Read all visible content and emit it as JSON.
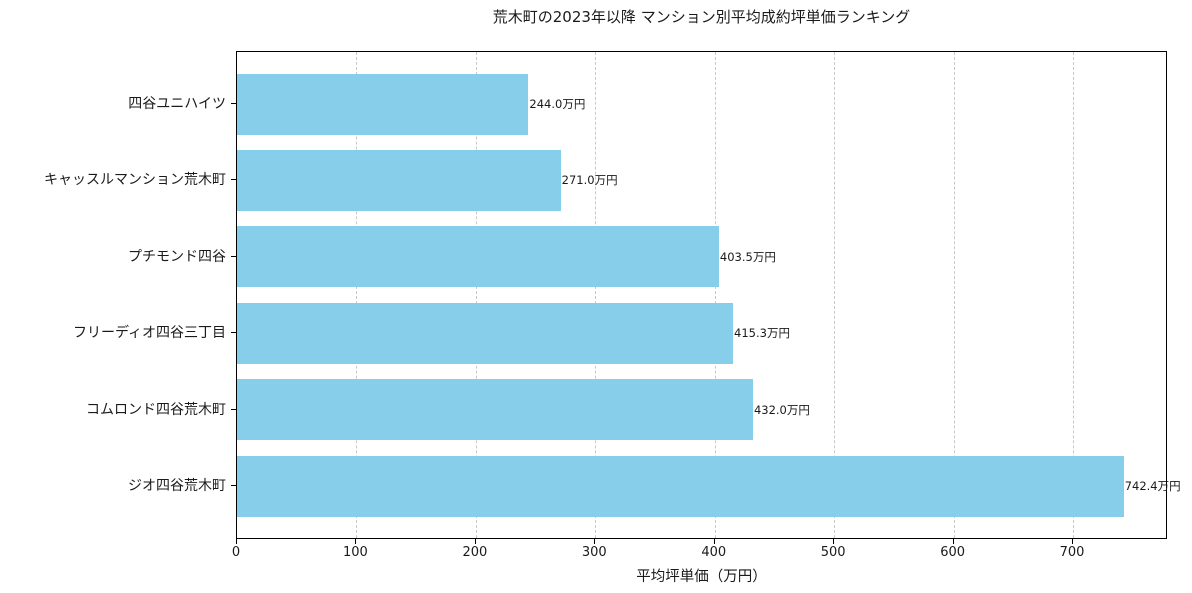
{
  "chart_data": {
    "type": "bar",
    "orientation": "horizontal",
    "title": "荒木町の2023年以降 マンション別平均成約坪単価ランキング",
    "xlabel": "平均坪単価（万円）",
    "ylabel": "",
    "categories": [
      "四谷ユニハイツ",
      "キャッスルマンション荒木町",
      "プチモンド四谷",
      "フリーディオ四谷三丁目",
      "コムロンド四谷荒木町",
      "ジオ四谷荒木町"
    ],
    "values": [
      244.0,
      271.0,
      403.5,
      415.3,
      432.0,
      742.4
    ],
    "value_labels": [
      "244.0万円",
      "271.0万円",
      "403.5万円",
      "415.3万円",
      "432.0万円",
      "742.4万円"
    ],
    "xlim": [
      0,
      779.5
    ],
    "xticks": [
      0,
      100,
      200,
      300,
      400,
      500,
      600,
      700
    ],
    "grid": "x-axis dashed",
    "bar_color": "#87ceeb",
    "legend": null
  }
}
